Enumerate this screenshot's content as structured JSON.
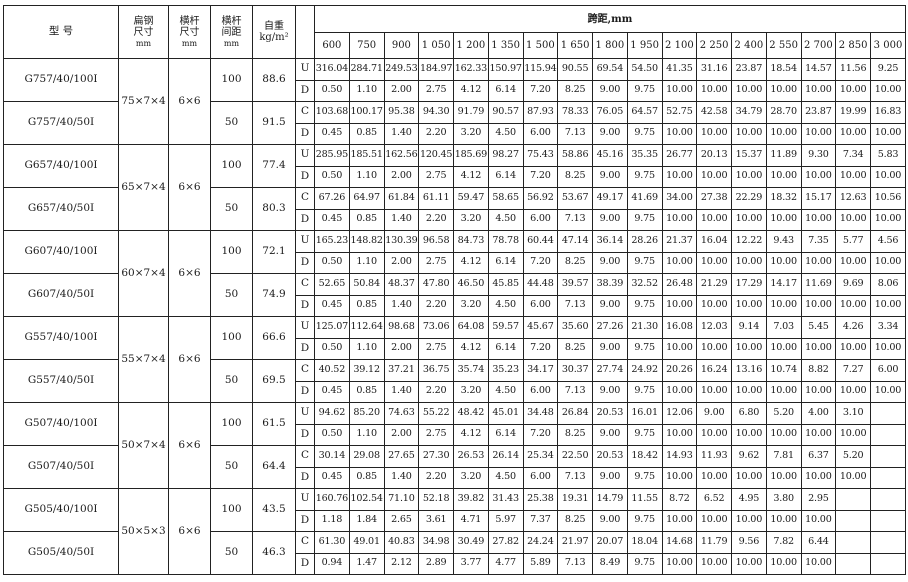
{
  "headers": {
    "model": "型  号",
    "flat_steel": "扁钢",
    "flat_steel_2": "尺寸",
    "flat_steel_unit": "mm",
    "bar_size": "横杆",
    "bar_size_2": "尺寸",
    "bar_size_unit": "mm",
    "bar_spacing": "横杆",
    "bar_spacing_2": "间距",
    "bar_spacing_unit": "mm",
    "weight": "自重",
    "weight_unit": "kg/m²",
    "span": "跨距,mm",
    "spans": [
      "600",
      "750",
      "900",
      "1 050",
      "1 200",
      "1 350",
      "1 500",
      "1 650",
      "1 800",
      "1 950",
      "2 100",
      "2 250",
      "2 400",
      "2 550",
      "2 700",
      "2 850",
      "3 000"
    ]
  },
  "groups": [
    {
      "flat_steel": "75×7×4",
      "bar_size": "6×6",
      "models": [
        {
          "model": "G757/40/100I",
          "spacing": "100",
          "weight": "88.6",
          "rows": [
            {
              "type": "U",
              "values": [
                "316.04",
                "284.71",
                "249.53",
                "184.97",
                "162.33",
                "150.97",
                "115.94",
                "90.55",
                "69.54",
                "54.50",
                "41.35",
                "31.16",
                "23.87",
                "18.54",
                "14.57",
                "11.56",
                "9.25"
              ]
            },
            {
              "type": "D",
              "values": [
                "0.50",
                "1.10",
                "2.00",
                "2.75",
                "4.12",
                "6.14",
                "7.20",
                "8.25",
                "9.00",
                "9.75",
                "10.00",
                "10.00",
                "10.00",
                "10.00",
                "10.00",
                "10.00",
                "10.00"
              ]
            }
          ]
        },
        {
          "model": "G757/40/50I",
          "spacing": "50",
          "weight": "91.5",
          "rows": [
            {
              "type": "C",
              "values": [
                "103.68",
                "100.17",
                "95.38",
                "94.30",
                "91.79",
                "90.57",
                "87.93",
                "78.33",
                "76.05",
                "64.57",
                "52.75",
                "42.58",
                "34.79",
                "28.70",
                "23.87",
                "19.99",
                "16.83"
              ]
            },
            {
              "type": "D",
              "values": [
                "0.45",
                "0.85",
                "1.40",
                "2.20",
                "3.20",
                "4.50",
                "6.00",
                "7.13",
                "9.00",
                "9.75",
                "10.00",
                "10.00",
                "10.00",
                "10.00",
                "10.00",
                "10.00",
                "10.00"
              ]
            }
          ]
        }
      ]
    },
    {
      "flat_steel": "65×7×4",
      "bar_size": "6×6",
      "models": [
        {
          "model": "G657/40/100I",
          "spacing": "100",
          "weight": "77.4",
          "rows": [
            {
              "type": "U",
              "values": [
                "285.95",
                "185.51",
                "162.56",
                "120.45",
                "185.69",
                "98.27",
                "75.43",
                "58.86",
                "45.16",
                "35.35",
                "26.77",
                "20.13",
                "15.37",
                "11.89",
                "9.30",
                "7.34",
                "5.83"
              ]
            },
            {
              "type": "D",
              "values": [
                "0.50",
                "1.10",
                "2.00",
                "2.75",
                "4.12",
                "6.14",
                "7.20",
                "8.25",
                "9.00",
                "9.75",
                "10.00",
                "10.00",
                "10.00",
                "10.00",
                "10.00",
                "10.00",
                "10.00"
              ]
            }
          ]
        },
        {
          "model": "G657/40/50I",
          "spacing": "50",
          "weight": "80.3",
          "rows": [
            {
              "type": "C",
              "values": [
                "67.26",
                "64.97",
                "61.84",
                "61.11",
                "59.47",
                "58.65",
                "56.92",
                "53.67",
                "49.17",
                "41.69",
                "34.00",
                "27.38",
                "22.29",
                "18.32",
                "15.17",
                "12.63",
                "10.56"
              ]
            },
            {
              "type": "D",
              "values": [
                "0.45",
                "0.85",
                "1.40",
                "2.20",
                "3.20",
                "4.50",
                "6.00",
                "7.13",
                "9.00",
                "9.75",
                "10.00",
                "10.00",
                "10.00",
                "10.00",
                "10.00",
                "10.00",
                "10.00"
              ]
            }
          ]
        }
      ]
    },
    {
      "flat_steel": "60×7×4",
      "bar_size": "6×6",
      "models": [
        {
          "model": "G607/40/100I",
          "spacing": "100",
          "weight": "72.1",
          "rows": [
            {
              "type": "U",
              "values": [
                "165.23",
                "148.82",
                "130.39",
                "96.58",
                "84.73",
                "78.78",
                "60.44",
                "47.14",
                "36.14",
                "28.26",
                "21.37",
                "16.04",
                "12.22",
                "9.43",
                "7.35",
                "5.77",
                "4.56"
              ]
            },
            {
              "type": "D",
              "values": [
                "0.50",
                "1.10",
                "2.00",
                "2.75",
                "4.12",
                "6.14",
                "7.20",
                "8.25",
                "9.00",
                "9.75",
                "10.00",
                "10.00",
                "10.00",
                "10.00",
                "10.00",
                "10.00",
                "10.00"
              ]
            }
          ]
        },
        {
          "model": "G607/40/50I",
          "spacing": "50",
          "weight": "74.9",
          "rows": [
            {
              "type": "C",
              "values": [
                "52.65",
                "50.84",
                "48.37",
                "47.80",
                "46.50",
                "45.85",
                "44.48",
                "39.57",
                "38.39",
                "32.52",
                "26.48",
                "21.29",
                "17.29",
                "14.17",
                "11.69",
                "9.69",
                "8.06"
              ]
            },
            {
              "type": "D",
              "values": [
                "0.45",
                "0.85",
                "1.40",
                "2.20",
                "3.20",
                "4.50",
                "6.00",
                "7.13",
                "9.00",
                "9.75",
                "10.00",
                "10.00",
                "10.00",
                "10.00",
                "10.00",
                "10.00",
                "10.00"
              ]
            }
          ]
        }
      ]
    },
    {
      "flat_steel": "55×7×4",
      "bar_size": "6×6",
      "models": [
        {
          "model": "G557/40/100I",
          "spacing": "100",
          "weight": "66.6",
          "rows": [
            {
              "type": "U",
              "values": [
                "125.07",
                "112.64",
                "98.68",
                "73.06",
                "64.08",
                "59.57",
                "45.67",
                "35.60",
                "27.26",
                "21.30",
                "16.08",
                "12.03",
                "9.14",
                "7.03",
                "5.45",
                "4.26",
                "3.34"
              ]
            },
            {
              "type": "D",
              "values": [
                "0.50",
                "1.10",
                "2.00",
                "2.75",
                "4.12",
                "6.14",
                "7.20",
                "8.25",
                "9.00",
                "9.75",
                "10.00",
                "10.00",
                "10.00",
                "10.00",
                "10.00",
                "10.00",
                "10.00"
              ]
            }
          ]
        },
        {
          "model": "G557/40/50I",
          "spacing": "50",
          "weight": "69.5",
          "rows": [
            {
              "type": "C",
              "values": [
                "40.52",
                "39.12",
                "37.21",
                "36.75",
                "35.74",
                "35.23",
                "34.17",
                "30.37",
                "27.74",
                "24.92",
                "20.26",
                "16.24",
                "13.16",
                "10.74",
                "8.82",
                "7.27",
                "6.00"
              ]
            },
            {
              "type": "D",
              "values": [
                "0.45",
                "0.85",
                "1.40",
                "2.20",
                "3.20",
                "4.50",
                "6.00",
                "7.13",
                "9.00",
                "9.75",
                "10.00",
                "10.00",
                "10.00",
                "10.00",
                "10.00",
                "10.00",
                "10.00"
              ]
            }
          ]
        }
      ]
    },
    {
      "flat_steel": "50×7×4",
      "bar_size": "6×6",
      "models": [
        {
          "model": "G507/40/100I",
          "spacing": "100",
          "weight": "61.5",
          "rows": [
            {
              "type": "U",
              "values": [
                "94.62",
                "85.20",
                "74.63",
                "55.22",
                "48.42",
                "45.01",
                "34.48",
                "26.84",
                "20.53",
                "16.01",
                "12.06",
                "9.00",
                "6.80",
                "5.20",
                "4.00",
                "3.10",
                ""
              ]
            },
            {
              "type": "D",
              "values": [
                "0.50",
                "1.10",
                "2.00",
                "2.75",
                "4.12",
                "6.14",
                "7.20",
                "8.25",
                "9.00",
                "9.75",
                "10.00",
                "10.00",
                "10.00",
                "10.00",
                "10.00",
                "10.00",
                ""
              ]
            }
          ]
        },
        {
          "model": "G507/40/50I",
          "spacing": "50",
          "weight": "64.4",
          "rows": [
            {
              "type": "C",
              "values": [
                "30.14",
                "29.08",
                "27.65",
                "27.30",
                "26.53",
                "26.14",
                "25.34",
                "22.50",
                "20.53",
                "18.42",
                "14.93",
                "11.93",
                "9.62",
                "7.81",
                "6.37",
                "5.20",
                ""
              ]
            },
            {
              "type": "D",
              "values": [
                "0.45",
                "0.85",
                "1.40",
                "2.20",
                "3.20",
                "4.50",
                "6.00",
                "7.13",
                "9.00",
                "9.75",
                "10.00",
                "10.00",
                "10.00",
                "10.00",
                "10.00",
                "10.00",
                ""
              ]
            }
          ]
        }
      ]
    },
    {
      "flat_steel": "50×5×3",
      "bar_size": "6×6",
      "models": [
        {
          "model": "G505/40/100I",
          "spacing": "100",
          "weight": "43.5",
          "rows": [
            {
              "type": "U",
              "values": [
                "160.76",
                "102.54",
                "71.10",
                "52.18",
                "39.82",
                "31.43",
                "25.38",
                "19.31",
                "14.79",
                "11.55",
                "8.72",
                "6.52",
                "4.95",
                "3.80",
                "2.95",
                "",
                ""
              ]
            },
            {
              "type": "D",
              "values": [
                "1.18",
                "1.84",
                "2.65",
                "3.61",
                "4.71",
                "5.97",
                "7.37",
                "8.25",
                "9.00",
                "9.75",
                "10.00",
                "10.00",
                "10.00",
                "10.00",
                "10.00",
                "",
                ""
              ]
            }
          ]
        },
        {
          "model": "G505/40/50I",
          "spacing": "50",
          "weight": "46.3",
          "rows": [
            {
              "type": "C",
              "values": [
                "61.30",
                "49.01",
                "40.83",
                "34.98",
                "30.49",
                "27.82",
                "24.24",
                "21.97",
                "20.07",
                "18.04",
                "14.68",
                "11.79",
                "9.56",
                "7.82",
                "6.44",
                "",
                ""
              ]
            },
            {
              "type": "D",
              "values": [
                "0.94",
                "1.47",
                "2.12",
                "2.89",
                "3.77",
                "4.77",
                "5.89",
                "7.13",
                "8.49",
                "9.75",
                "10.00",
                "10.00",
                "10.00",
                "10.00",
                "10.00",
                "",
                ""
              ]
            }
          ]
        }
      ]
    }
  ]
}
